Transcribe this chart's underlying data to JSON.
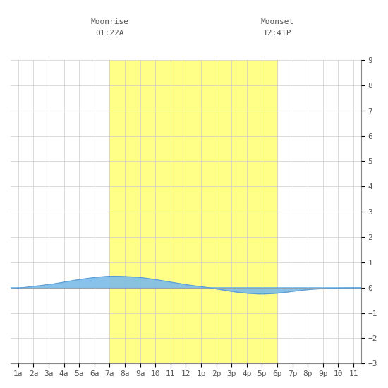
{
  "title_moonrise": "Moonrise",
  "title_moonrise_time": "01:22A",
  "title_moonset": "Moonset",
  "title_moonset_time": "12:41P",
  "moonrise_x": 7.0,
  "moonset_x": 18.0,
  "x_labels": [
    "1a",
    "2a",
    "3a",
    "4a",
    "5a",
    "6a",
    "7a",
    "8a",
    "9a",
    "10",
    "11",
    "12",
    "1p",
    "2p",
    "3p",
    "4p",
    "5p",
    "6p",
    "7p",
    "8p",
    "9p",
    "10",
    "11"
  ],
  "x_ticks": [
    1,
    2,
    3,
    4,
    5,
    6,
    7,
    8,
    9,
    10,
    11,
    12,
    13,
    14,
    15,
    16,
    17,
    18,
    19,
    20,
    21,
    22,
    23
  ],
  "ylim_min": -3,
  "ylim_max": 9,
  "yticks": [
    -3,
    -2,
    -1,
    0,
    1,
    2,
    3,
    4,
    5,
    6,
    7,
    8,
    9
  ],
  "xlim_min": 0.5,
  "xlim_max": 23.5,
  "moon_fill_color": "#FFFF88",
  "tide_fill_color": "#7BBCE8",
  "tide_line_color": "#5B9BD5",
  "background_color": "#FFFFFF",
  "grid_color": "#CCCCCC",
  "font_color": "#555555",
  "font_family": "monospace",
  "tide_hours": [
    0.5,
    1,
    2,
    3,
    4,
    5,
    6,
    7,
    8,
    9,
    10,
    11,
    12,
    13,
    14,
    15,
    16,
    17,
    18,
    19,
    20,
    21,
    22,
    23,
    23.5
  ],
  "tide_values": [
    -0.05,
    -0.02,
    0.05,
    0.12,
    0.22,
    0.32,
    0.4,
    0.45,
    0.44,
    0.4,
    0.32,
    0.22,
    0.12,
    0.04,
    -0.05,
    -0.15,
    -0.22,
    -0.25,
    -0.22,
    -0.15,
    -0.08,
    -0.04,
    -0.02,
    -0.01,
    -0.01
  ]
}
